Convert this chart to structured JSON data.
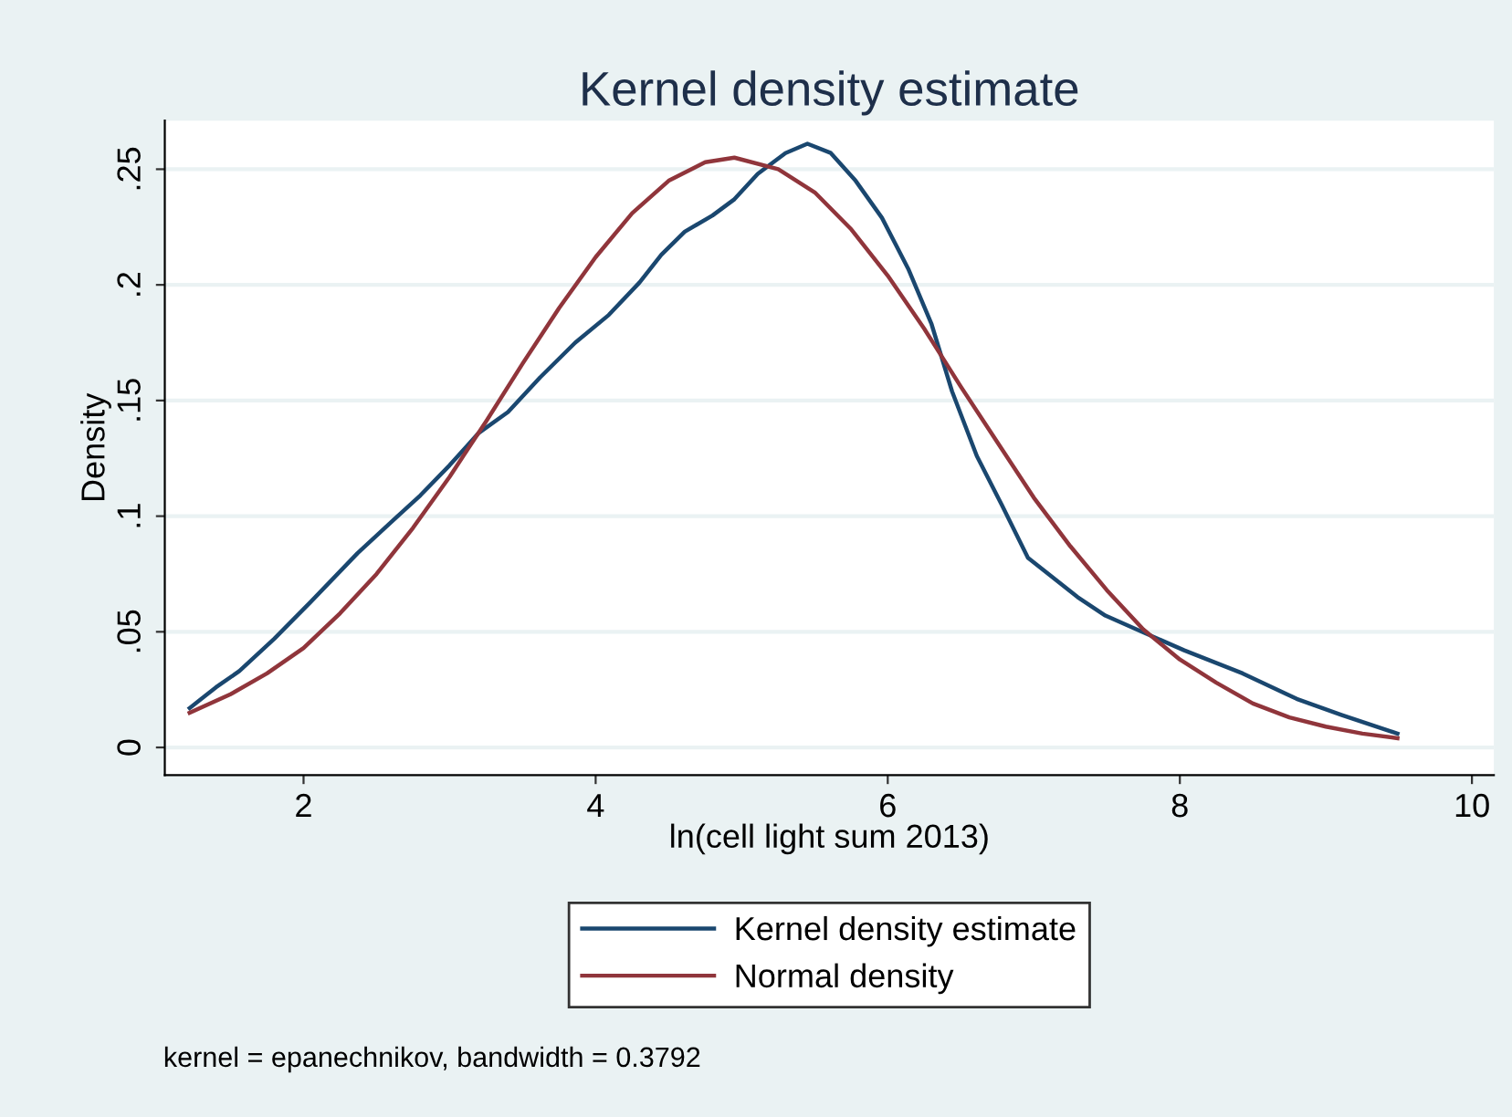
{
  "chart_data": {
    "type": "line",
    "title": "Kernel density estimate",
    "xlabel": "ln(cell light sum 2013)",
    "ylabel": "Density",
    "series": [
      {
        "name": "Kernel density estimate",
        "color": "#1a476f",
        "x": [
          1.22,
          1.4,
          1.56,
          1.8,
          2.05,
          2.37,
          2.61,
          2.8,
          3.0,
          3.2,
          3.4,
          3.62,
          3.86,
          4.09,
          4.3,
          4.45,
          4.61,
          4.8,
          4.95,
          5.11,
          5.3,
          5.45,
          5.61,
          5.78,
          5.96,
          6.14,
          6.3,
          6.44,
          6.61,
          6.78,
          6.96,
          7.3,
          7.49,
          7.74,
          8.03,
          8.43,
          8.8,
          9.11,
          9.49
        ],
        "values": [
          0.017,
          0.026,
          0.033,
          0.047,
          0.063,
          0.084,
          0.098,
          0.109,
          0.122,
          0.136,
          0.145,
          0.16,
          0.175,
          0.187,
          0.201,
          0.213,
          0.223,
          0.23,
          0.237,
          0.248,
          0.257,
          0.261,
          0.257,
          0.245,
          0.229,
          0.207,
          0.183,
          0.154,
          0.126,
          0.105,
          0.082,
          0.065,
          0.057,
          0.05,
          0.042,
          0.032,
          0.021,
          0.014,
          0.006
        ]
      },
      {
        "name": "Normal density",
        "color": "#90353b",
        "x": [
          1.22,
          1.5,
          1.75,
          2.0,
          2.25,
          2.5,
          2.75,
          3.0,
          3.25,
          3.5,
          3.75,
          4.0,
          4.25,
          4.5,
          4.75,
          4.95,
          5.25,
          5.5,
          5.75,
          6.0,
          6.25,
          6.5,
          6.75,
          7.0,
          7.25,
          7.5,
          7.75,
          8.0,
          8.25,
          8.5,
          8.75,
          9.0,
          9.25,
          9.49
        ],
        "values": [
          0.015,
          0.023,
          0.032,
          0.043,
          0.058,
          0.075,
          0.095,
          0.117,
          0.141,
          0.166,
          0.19,
          0.212,
          0.231,
          0.245,
          0.253,
          0.255,
          0.25,
          0.24,
          0.224,
          0.204,
          0.181,
          0.156,
          0.132,
          0.108,
          0.087,
          0.068,
          0.051,
          0.038,
          0.028,
          0.019,
          0.013,
          0.009,
          0.006,
          0.004
        ]
      }
    ],
    "xlim": [
      1.05,
      10.15
    ],
    "xticks": [
      2,
      4,
      6,
      8,
      10
    ],
    "ylim": [
      -0.012,
      0.271
    ],
    "yticks": [
      {
        "value": 0,
        "label": "0"
      },
      {
        "value": 0.05,
        "label": ".05"
      },
      {
        "value": 0.1,
        "label": ".1"
      },
      {
        "value": 0.15,
        "label": ".15"
      },
      {
        "value": 0.2,
        "label": ".2"
      },
      {
        "value": 0.25,
        "label": ".25"
      }
    ],
    "grid": "y",
    "legend": "bottom",
    "marker": "none",
    "line_style": "solid",
    "annotations": [
      "kernel = epanechnikov, bandwidth = 0.3792"
    ]
  }
}
